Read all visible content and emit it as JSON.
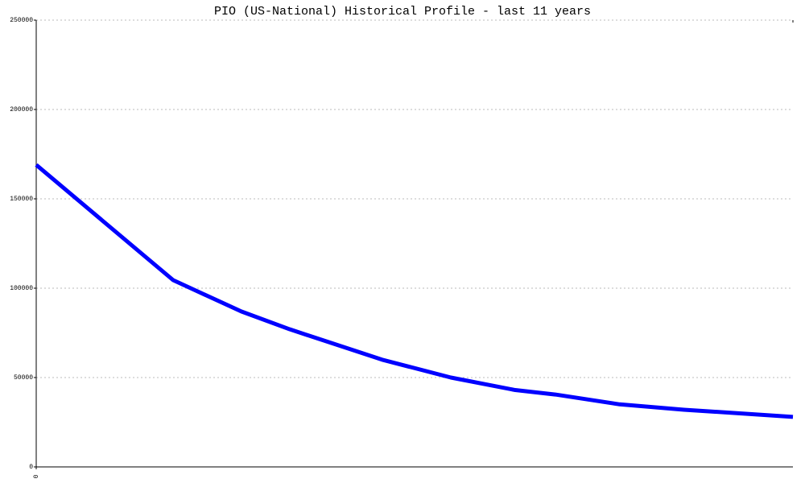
{
  "chart_data": {
    "type": "line",
    "title": "PIO (US-National) Historical Profile - last 11 years",
    "x": [
      0,
      1.81,
      2.71,
      3.35,
      4.57,
      5.48,
      6.33,
      6.86,
      7.71,
      8.56,
      10
    ],
    "values": [
      169000,
      104500,
      87000,
      77000,
      60000,
      50000,
      43000,
      40500,
      35000,
      32000,
      28000
    ],
    "color": "#0000ff",
    "xlim": [
      0,
      10
    ],
    "xticks": [
      0
    ],
    "ylim": [
      0,
      250000
    ],
    "yticks": [
      0,
      50000,
      100000,
      150000,
      200000,
      250000
    ],
    "grid": true
  }
}
